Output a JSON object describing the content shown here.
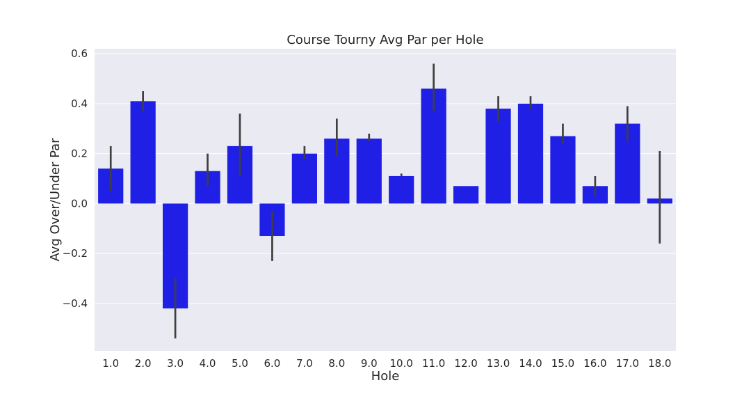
{
  "chart_data": {
    "type": "bar",
    "title": "Course Tourny Avg Par per Hole",
    "xlabel": "Hole",
    "ylabel": "Avg Over/Under Par",
    "categories": [
      "1.0",
      "2.0",
      "3.0",
      "4.0",
      "5.0",
      "6.0",
      "7.0",
      "8.0",
      "9.0",
      "10.0",
      "11.0",
      "12.0",
      "13.0",
      "14.0",
      "15.0",
      "16.0",
      "17.0",
      "18.0"
    ],
    "values": [
      0.14,
      0.41,
      -0.42,
      0.13,
      0.23,
      -0.13,
      0.2,
      0.26,
      0.26,
      0.11,
      0.46,
      0.07,
      0.38,
      0.4,
      0.27,
      0.07,
      0.32,
      0.02
    ],
    "error_low": [
      0.05,
      0.37,
      -0.54,
      0.07,
      0.11,
      -0.23,
      0.18,
      0.19,
      0.25,
      0.11,
      0.37,
      0.07,
      0.33,
      0.38,
      0.24,
      0.03,
      0.25,
      -0.16
    ],
    "error_high": [
      0.23,
      0.45,
      -0.3,
      0.2,
      0.36,
      -0.03,
      0.23,
      0.34,
      0.28,
      0.12,
      0.56,
      0.07,
      0.43,
      0.43,
      0.32,
      0.11,
      0.39,
      0.21
    ],
    "ylim": [
      -0.59,
      0.62
    ],
    "yticks": [
      0.6,
      0.4,
      0.2,
      0.0,
      -0.2,
      -0.4
    ],
    "ytick_labels": [
      "0.6",
      "0.4",
      "0.2",
      "0.0",
      "−0.2",
      "−0.4"
    ],
    "grid": true,
    "legend": "none",
    "colors": {
      "bar": "#1f1fe6",
      "error_bar": "#3f3f3f",
      "plot_background": "#eaeaf2",
      "grid": "#ffffff",
      "text": "#262626"
    }
  }
}
